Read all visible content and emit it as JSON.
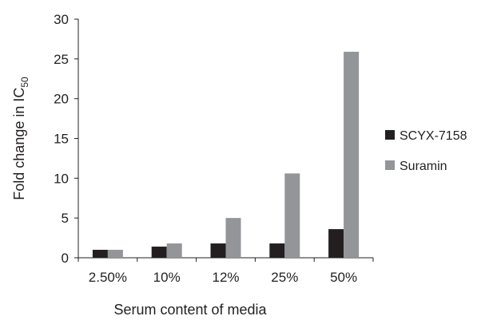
{
  "chart_data": {
    "type": "bar",
    "title": "",
    "xlabel": "Serum content of media",
    "ylabel": "Fold change in IC",
    "ylabel_subscript": "50",
    "categories": [
      "2.50%",
      "10%",
      "12%",
      "25%",
      "50%"
    ],
    "series": [
      {
        "name": "SCYX-7158",
        "color": "#231f20",
        "values": [
          1.0,
          1.4,
          1.8,
          1.8,
          3.6
        ]
      },
      {
        "name": "Suramin",
        "color": "#939598",
        "values": [
          1.0,
          1.8,
          5.0,
          10.6,
          25.9
        ]
      }
    ],
    "ylim": [
      0,
      30
    ],
    "yticks": [
      0,
      5,
      10,
      15,
      20,
      25,
      30
    ],
    "grid": false,
    "legend": "right"
  }
}
